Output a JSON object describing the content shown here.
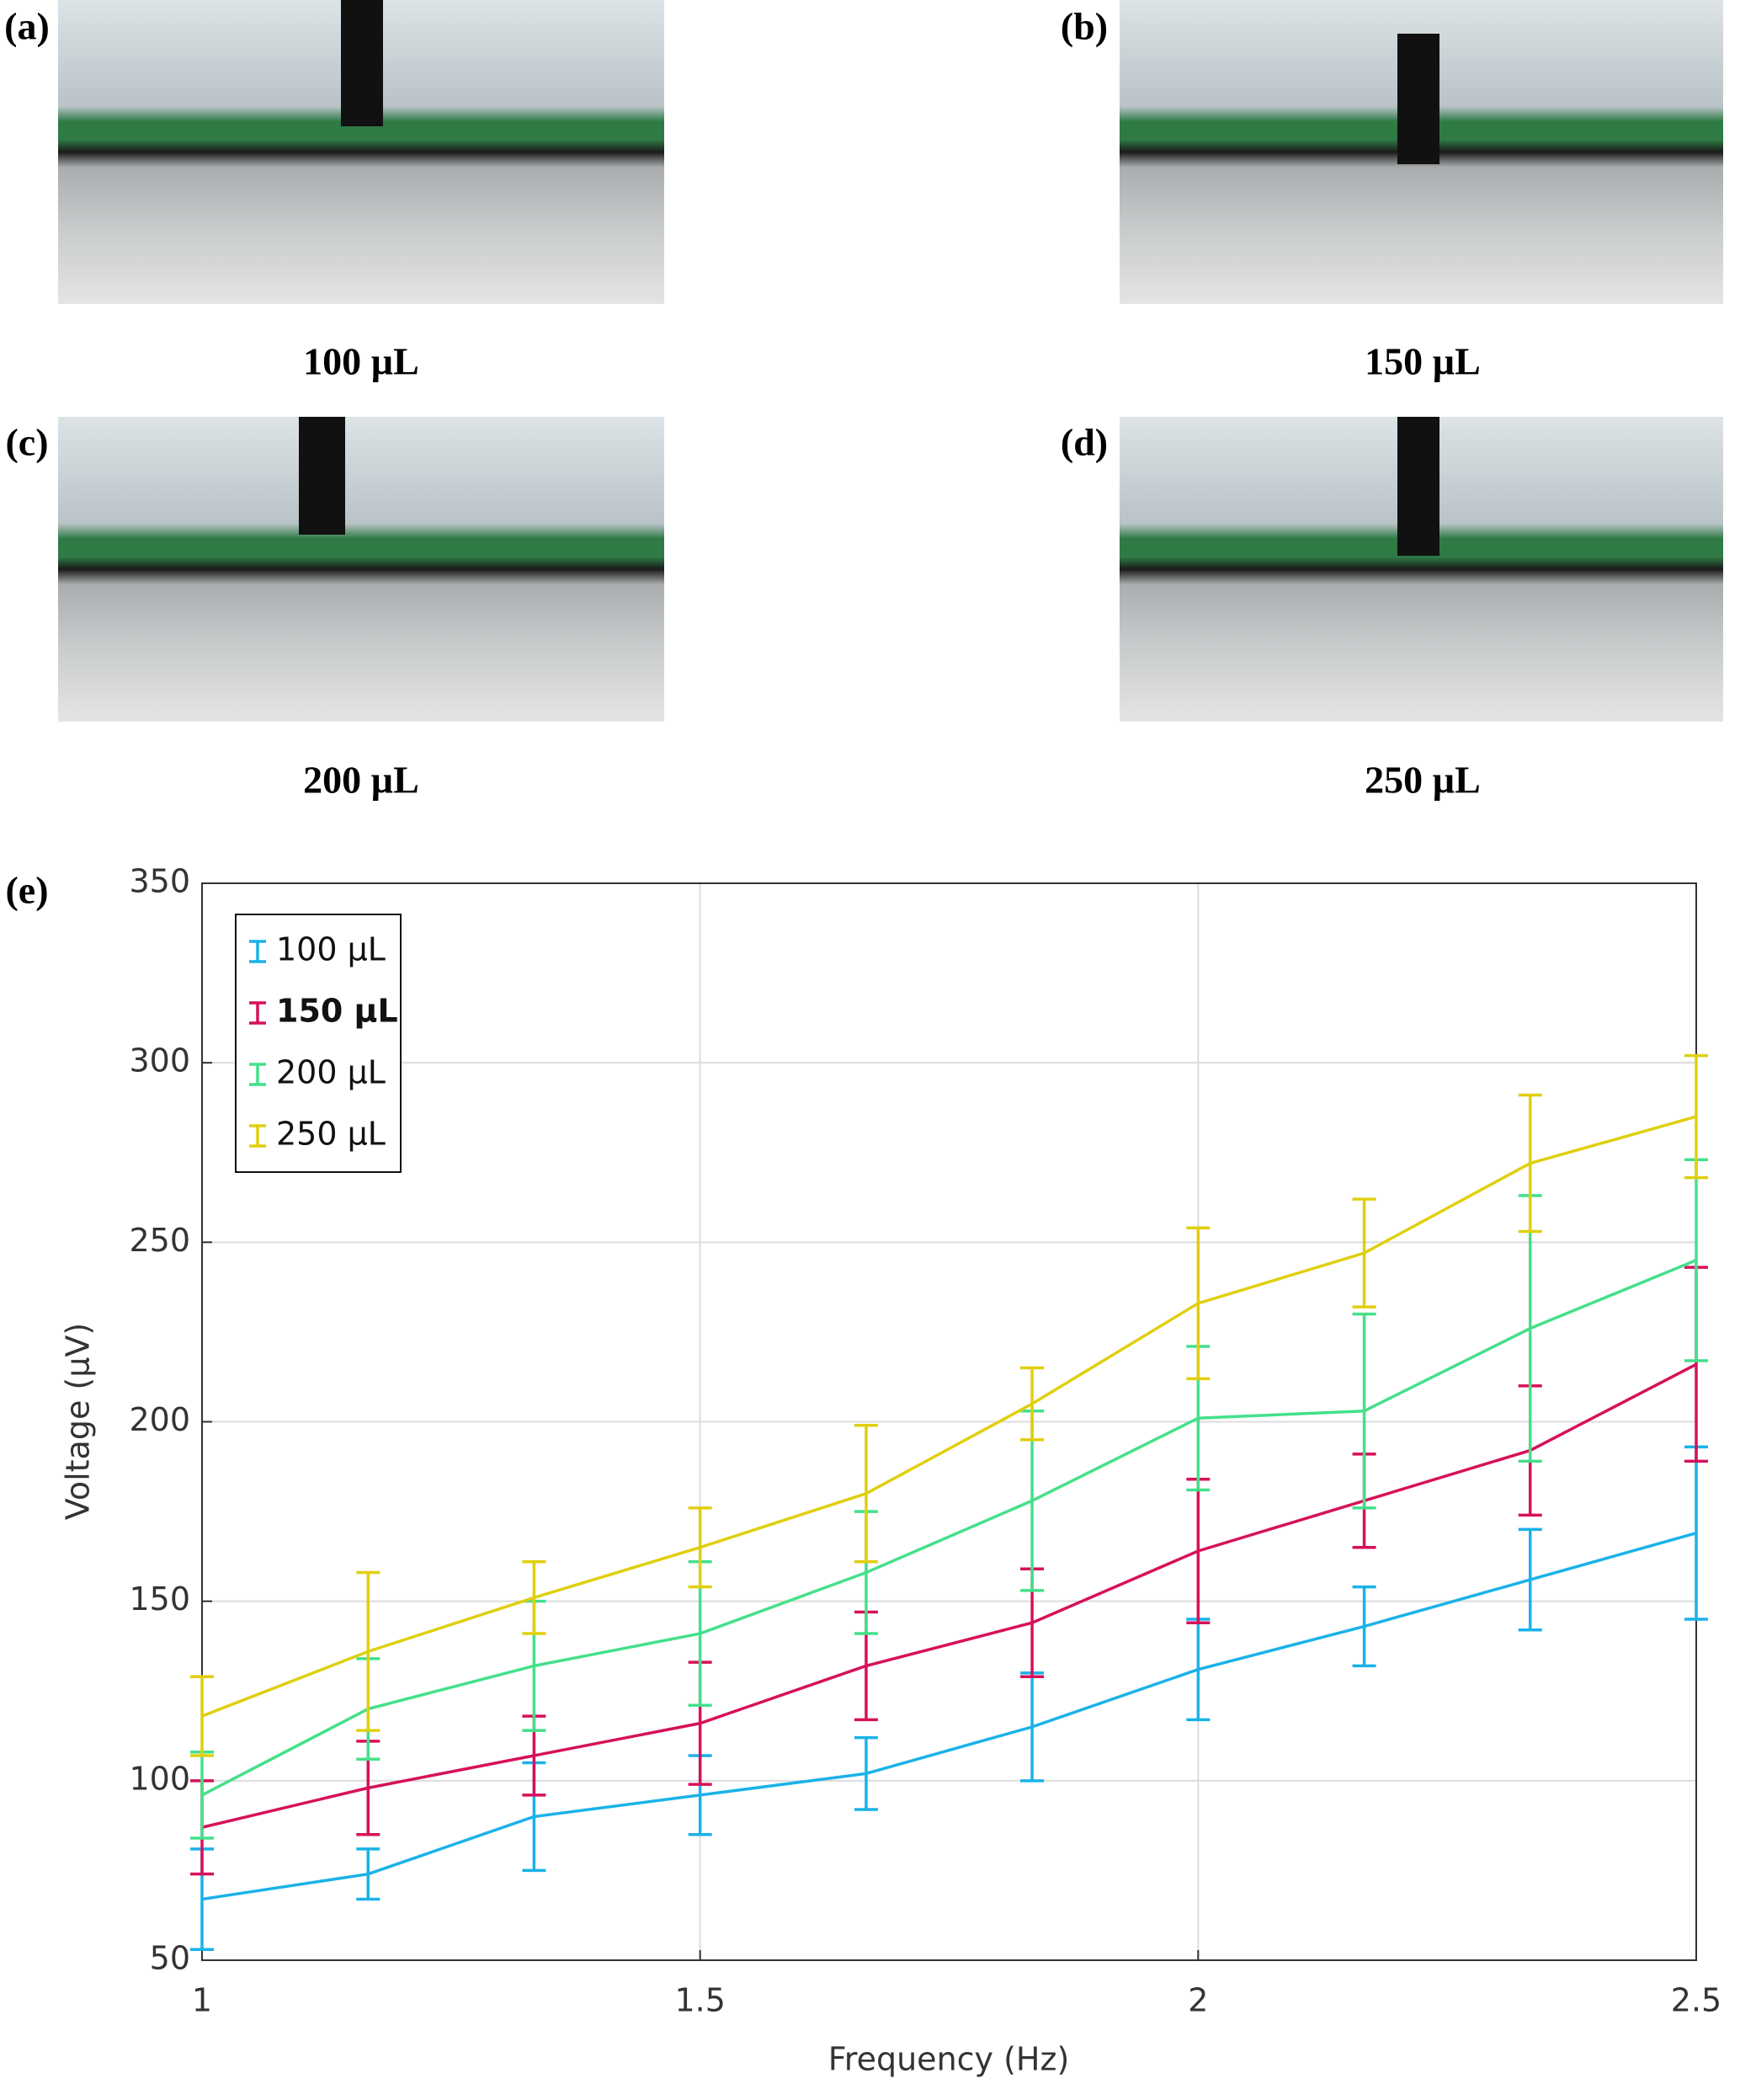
{
  "panels": [
    {
      "label": "(a)",
      "caption": "100 µL"
    },
    {
      "label": "(b)",
      "caption": "150 µL"
    },
    {
      "label": "(c)",
      "caption": "200 µL"
    },
    {
      "label": "(d)",
      "caption": "250 µL"
    }
  ],
  "chart_data": {
    "type": "line",
    "panel_label": "(e)",
    "xlabel": "Frequency (Hz)",
    "ylabel": "Voltage (µV)",
    "x": [
      1,
      1.1667,
      1.3333,
      1.5,
      1.6667,
      1.8333,
      2,
      2.1667,
      2.3333,
      2.5
    ],
    "series": [
      {
        "name": "100 µL",
        "color": "#1ab2e8",
        "bold": false,
        "values": [
          67,
          74,
          90,
          96,
          102,
          115,
          131,
          143,
          156,
          169
        ],
        "errors": [
          14,
          7,
          15,
          11,
          10,
          15,
          14,
          11,
          14,
          24
        ]
      },
      {
        "name": "150 µL",
        "color": "#d6115a",
        "bold": true,
        "values": [
          87,
          98,
          107,
          116,
          132,
          144,
          164,
          178,
          192,
          216
        ],
        "errors": [
          13,
          13,
          11,
          17,
          15,
          15,
          20,
          13,
          18,
          27
        ]
      },
      {
        "name": "200 µL",
        "color": "#44e08a",
        "bold": false,
        "values": [
          96,
          120,
          132,
          141,
          158,
          178,
          201,
          203,
          226,
          245
        ],
        "errors": [
          12,
          14,
          18,
          20,
          17,
          25,
          20,
          27,
          37,
          28
        ]
      },
      {
        "name": "250 µL",
        "color": "#e0cf0e",
        "bold": false,
        "values": [
          118,
          136,
          151,
          165,
          180,
          205,
          233,
          247,
          272,
          285
        ],
        "errors": [
          11,
          22,
          10,
          11,
          19,
          10,
          21,
          15,
          19,
          17
        ]
      }
    ],
    "xlim": [
      1,
      2.5
    ],
    "xticks": [
      1,
      1.5,
      2,
      2.5
    ],
    "ylim": [
      50,
      350
    ],
    "yticks": [
      50,
      100,
      150,
      200,
      250,
      300,
      350
    ],
    "grid": true,
    "legend": "upper left"
  }
}
